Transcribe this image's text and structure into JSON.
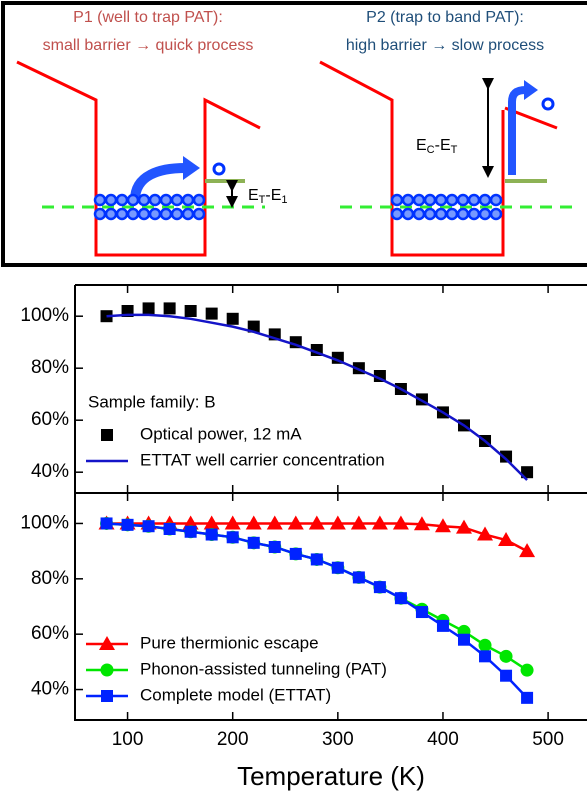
{
  "diagram": {
    "p1_title": "P1 (well to trap PAT):",
    "p1_desc": "small barrier → quick process",
    "p2_title": "P2 (trap to band PAT):",
    "p2_desc": "high barrier → slow process",
    "barrier_left": [
      "E",
      "T",
      "-E",
      "1"
    ],
    "barrier_right": [
      "E",
      "C",
      "-E",
      "T"
    ]
  },
  "chart_data": [
    {
      "type": "line",
      "annotation": "Sample family: B",
      "legend": "lower left",
      "xlim": [
        50,
        537
      ],
      "ylim": [
        32,
        112
      ],
      "yticks": [
        {
          "value": 40,
          "label": "40%"
        },
        {
          "value": 60,
          "label": "60%"
        },
        {
          "value": 80,
          "label": "80%"
        },
        {
          "value": 100,
          "label": "100%"
        }
      ],
      "x": [
        80,
        100,
        120,
        140,
        160,
        180,
        200,
        220,
        240,
        260,
        280,
        300,
        320,
        340,
        360,
        380,
        400,
        420,
        440,
        460,
        480
      ],
      "series": [
        {
          "name": "Optical power, 12 mA",
          "color": "#000000",
          "marker": "square",
          "line": false,
          "values": [
            100,
            102,
            103,
            103,
            102,
            101,
            99,
            96,
            93,
            90,
            87,
            84,
            80,
            77,
            72,
            68,
            63,
            58,
            52,
            46,
            40
          ]
        },
        {
          "name": "ETTAT well carrier concentration",
          "color": "#1414c8",
          "marker": "none",
          "line": true,
          "values": [
            100,
            100.5,
            100.5,
            100,
            99,
            97.5,
            96,
            94,
            91.5,
            89,
            86,
            83,
            79.5,
            76,
            72,
            67.5,
            63,
            58,
            52,
            45,
            37
          ]
        }
      ]
    },
    {
      "type": "line",
      "xlabel": "Temperature (K)",
      "legend": "lower left",
      "xlim": [
        50,
        537
      ],
      "ylim": [
        29,
        111
      ],
      "xticks": [
        100,
        200,
        300,
        400,
        500
      ],
      "yticks": [
        {
          "value": 40,
          "label": "40%"
        },
        {
          "value": 60,
          "label": "60%"
        },
        {
          "value": 80,
          "label": "80%"
        },
        {
          "value": 100,
          "label": "100%"
        }
      ],
      "x": [
        80,
        100,
        120,
        140,
        160,
        180,
        200,
        220,
        240,
        260,
        280,
        300,
        320,
        340,
        360,
        380,
        400,
        420,
        440,
        460,
        480
      ],
      "series": [
        {
          "name": "Pure thermionic escape",
          "color": "#ff0000",
          "marker": "triangle",
          "line": true,
          "values": [
            100,
            100,
            100,
            100,
            100,
            100,
            100,
            100,
            100,
            100,
            100,
            100,
            100,
            100,
            100,
            99.7,
            99,
            98.5,
            96,
            94,
            90
          ]
        },
        {
          "name": "Phonon-assisted tunneling (PAT)",
          "color": "#00e600",
          "marker": "circle",
          "line": true,
          "values": [
            100,
            99.5,
            99,
            98,
            97,
            96,
            95,
            93,
            91.5,
            89,
            87,
            84,
            80.5,
            77,
            73,
            69,
            65,
            61,
            56,
            52,
            47
          ]
        },
        {
          "name": "Complete model (ETTAT)",
          "color": "#0022ff",
          "marker": "square",
          "line": true,
          "values": [
            100,
            99.5,
            99,
            98,
            97,
            96,
            95,
            93,
            91.5,
            89,
            87,
            84,
            80.5,
            77,
            73,
            68,
            63,
            58,
            52,
            45,
            37
          ]
        }
      ]
    }
  ]
}
